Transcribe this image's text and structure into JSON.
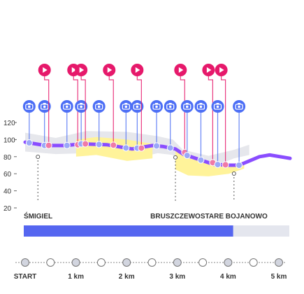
{
  "chart_data": {
    "type": "line",
    "title": "",
    "xlabel": "",
    "ylabel": "",
    "x_unit": "km",
    "xlim": [
      0,
      5.2
    ],
    "ylim": [
      20,
      120
    ],
    "yticks": [
      20,
      40,
      60,
      80,
      100,
      120
    ],
    "grid": false,
    "series": [
      {
        "x": [
          0.0,
          0.4,
          0.8,
          1.1,
          1.6,
          2.1,
          2.5,
          2.7,
          2.95,
          3.1,
          3.4,
          3.7,
          4.0,
          4.2,
          4.4,
          4.6,
          4.8,
          5.2
        ],
        "y": [
          97,
          93,
          93,
          95,
          94,
          89,
          93,
          92,
          89,
          83,
          77,
          71,
          70,
          70,
          75,
          80,
          82,
          78
        ]
      }
    ],
    "band_grey": {
      "x": [
        0.0,
        0.6,
        1.2,
        2.0,
        2.6,
        2.9,
        3.1,
        3.6,
        4.1,
        4.4
      ],
      "upper": [
        108,
        102,
        110,
        109,
        104,
        100,
        88,
        81,
        88,
        94
      ],
      "lower": [
        86,
        83,
        84,
        76,
        84,
        82,
        62,
        66,
        78,
        82
      ]
    },
    "band_yellow": [
      {
        "x": [
          1.0,
          1.4,
          2.0,
          2.5
        ],
        "upper": [
          100,
          103,
          100,
          95
        ],
        "lower": [
          80,
          82,
          75,
          78
        ]
      },
      {
        "x": [
          2.95,
          3.2,
          3.6,
          4.0,
          4.3
        ],
        "upper": [
          88,
          78,
          73,
          71,
          74
        ],
        "lower": [
          65,
          58,
          57,
          60,
          66
        ]
      }
    ],
    "markers": [
      {
        "km": 0.08,
        "icon": "camera",
        "row": "lower"
      },
      {
        "km": 0.38,
        "icon": "camera",
        "row": "lower",
        "pair": true
      },
      {
        "km": 0.38,
        "icon": "video",
        "row": "upper"
      },
      {
        "km": 0.82,
        "icon": "camera",
        "row": "lower"
      },
      {
        "km": 0.95,
        "icon": "video",
        "row": "upper"
      },
      {
        "km": 1.1,
        "icon": "camera",
        "row": "lower",
        "pair": true
      },
      {
        "km": 1.1,
        "icon": "video",
        "row": "upper"
      },
      {
        "km": 1.45,
        "icon": "camera",
        "row": "lower"
      },
      {
        "km": 1.65,
        "icon": "video",
        "row": "upper"
      },
      {
        "km": 1.98,
        "icon": "camera",
        "row": "lower"
      },
      {
        "km": 2.2,
        "icon": "camera",
        "row": "lower",
        "pair": true
      },
      {
        "km": 2.2,
        "icon": "video",
        "row": "upper"
      },
      {
        "km": 2.58,
        "icon": "camera",
        "row": "lower"
      },
      {
        "km": 2.85,
        "icon": "camera",
        "row": "lower"
      },
      {
        "km": 3.05,
        "icon": "video",
        "row": "upper"
      },
      {
        "km": 3.18,
        "icon": "camera",
        "row": "lower"
      },
      {
        "km": 3.45,
        "icon": "camera",
        "row": "lower"
      },
      {
        "km": 3.6,
        "icon": "video",
        "row": "upper"
      },
      {
        "km": 3.78,
        "icon": "camera",
        "row": "lower"
      },
      {
        "km": 3.85,
        "icon": "video",
        "row": "upper"
      },
      {
        "km": 4.2,
        "icon": "camera",
        "row": "lower"
      }
    ],
    "places": [
      {
        "name": "ŚMIGIEL",
        "km": 0.25
      },
      {
        "name": "BRUSZCZEWO",
        "km": 2.95
      },
      {
        "name": "STARE BOJANOWO",
        "km": 4.1
      }
    ],
    "progress": {
      "done_km": 4.1,
      "total_km": 5.2
    },
    "timeline": {
      "labels": [
        {
          "text": "START",
          "km": 0
        },
        {
          "text": "1 km",
          "km": 1
        },
        {
          "text": "2 km",
          "km": 2
        },
        {
          "text": "3 km",
          "km": 3
        },
        {
          "text": "4 km",
          "km": 4
        },
        {
          "text": "5 km",
          "km": 5
        }
      ],
      "nodes_km": [
        0,
        0.5,
        1,
        1.5,
        2,
        2.5,
        3,
        3.5,
        4,
        4.5,
        5
      ]
    },
    "colors": {
      "route_line": "#8a4dff",
      "band_grey": "#e6e7ec",
      "band_yellow": "#fff39a",
      "camera_marker": "#4c6ef5",
      "video_marker": "#e6196b",
      "progress_done": "#5566f0",
      "progress_rest": "#e4e6ee",
      "axis_text": "#333333"
    }
  }
}
